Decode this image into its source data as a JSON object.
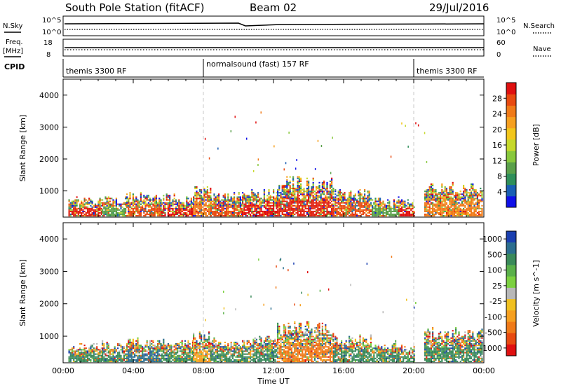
{
  "header": {
    "station": "South Pole Station (fitACF)",
    "beam": "Beam 02",
    "date": "29/Jul/2016"
  },
  "panels": {
    "nsky_label": "N.Sky",
    "nsky_ticks": [
      "10^5",
      "10^0"
    ],
    "nsearch_label": "N.Search",
    "nsearch_ticks": [
      "10^5",
      "10^0"
    ],
    "freq_label": [
      "Freq.",
      "[MHz]"
    ],
    "freq_ticks": [
      "18",
      "8"
    ],
    "nave_label": "Nave",
    "nave_ticks": [
      "60",
      "0"
    ],
    "cpid_label": "CPID",
    "cpid_segments": [
      {
        "label": "themis 3300 RF"
      },
      {
        "label": "normalsound (fast) 157 RF"
      },
      {
        "label": "themis 3300 RF"
      }
    ]
  },
  "chart_data": [
    {
      "type": "heatmap",
      "name": "power",
      "xlabel": "",
      "ylabel": "Slant Range [km]",
      "xlim": [
        0,
        24
      ],
      "ylim": [
        180,
        4500
      ],
      "yticks": [
        1000,
        2000,
        3000,
        4000
      ],
      "colorbar": {
        "label": "Power [dB]",
        "ticks": [
          "4",
          "8",
          "12",
          "16",
          "20",
          "24",
          "28"
        ],
        "colors": [
          "#1010e8",
          "#1a5fb4",
          "#2f8f5a",
          "#5aa04a",
          "#88c83c",
          "#c6d82a",
          "#f2c61b",
          "#f6a020",
          "#f07a18",
          "#e84a10",
          "#e01010"
        ]
      },
      "echo_bands": [
        {
          "x": [
            0.3,
            2.2
          ],
          "top": 750,
          "core": "#e02010"
        },
        {
          "x": [
            2.2,
            3.6
          ],
          "top": 800,
          "core": "#5aa04a"
        },
        {
          "x": [
            3.6,
            5.6
          ],
          "top": 900,
          "core": "#e84a10"
        },
        {
          "x": [
            5.6,
            7.4
          ],
          "top": 850,
          "core": "#e01010"
        },
        {
          "x": [
            7.4,
            8.4
          ],
          "top": 1100,
          "core": "#f07a18"
        },
        {
          "x": [
            8.4,
            10.2
          ],
          "top": 900,
          "core": "#e84a10"
        },
        {
          "x": [
            10.2,
            12.2
          ],
          "top": 1000,
          "core": "#e01010"
        },
        {
          "x": [
            12.2,
            15.4
          ],
          "top": 1400,
          "core": "#e02010"
        },
        {
          "x": [
            15.4,
            17.6
          ],
          "top": 1000,
          "core": "#e84a10"
        },
        {
          "x": [
            17.6,
            19.1
          ],
          "top": 800,
          "core": "#5aa04a"
        },
        {
          "x": [
            19.1,
            20.0
          ],
          "top": 700,
          "core": "#e01010"
        },
        {
          "x": [
            20.6,
            23.9
          ],
          "top": 1200,
          "core": "#f07a18"
        }
      ]
    },
    {
      "type": "heatmap",
      "name": "velocity",
      "xlabel": "Time UT",
      "ylabel": "Slant Range [km]",
      "xlim": [
        0,
        24
      ],
      "ylim": [
        180,
        4500
      ],
      "xticks": [
        "00:00",
        "04:00",
        "08:00",
        "12:00",
        "16:00",
        "20:00",
        "00:00"
      ],
      "yticks": [
        1000,
        2000,
        3000,
        4000
      ],
      "colorbar": {
        "label": "Velocity [m s^-1]",
        "ticks": [
          "1000",
          "500",
          "100",
          "25",
          "-25",
          "-100",
          "-500",
          "-1000"
        ],
        "colors": [
          "#1a3fb0",
          "#2c6e8f",
          "#3a8a5a",
          "#5ab04a",
          "#7cd040",
          "#b8b8b8",
          "#f0c020",
          "#f6a020",
          "#f07a18",
          "#e84a10",
          "#e01010"
        ]
      },
      "echo_bands": [
        {
          "x": [
            0.3,
            2.2
          ],
          "top": 750,
          "core": "#3a8a5a"
        },
        {
          "x": [
            2.2,
            3.6
          ],
          "top": 800,
          "core": "#3a8a5a"
        },
        {
          "x": [
            3.6,
            5.6
          ],
          "top": 900,
          "core": "#2c6e8f"
        },
        {
          "x": [
            5.6,
            7.4
          ],
          "top": 850,
          "core": "#3a8a5a"
        },
        {
          "x": [
            7.4,
            8.4
          ],
          "top": 1100,
          "core": "#f6a020"
        },
        {
          "x": [
            8.4,
            10.2
          ],
          "top": 900,
          "core": "#3a8a5a"
        },
        {
          "x": [
            10.2,
            12.2
          ],
          "top": 1000,
          "core": "#3a8a5a"
        },
        {
          "x": [
            12.2,
            15.4
          ],
          "top": 1400,
          "core": "#f07a18"
        },
        {
          "x": [
            15.4,
            17.6
          ],
          "top": 1000,
          "core": "#3a8a5a"
        },
        {
          "x": [
            17.6,
            19.1
          ],
          "top": 800,
          "core": "#3a8a5a"
        },
        {
          "x": [
            19.1,
            20.0
          ],
          "top": 700,
          "core": "#3a8a5a"
        },
        {
          "x": [
            20.6,
            23.9
          ],
          "top": 1200,
          "core": "#3a8a5a"
        }
      ]
    }
  ]
}
